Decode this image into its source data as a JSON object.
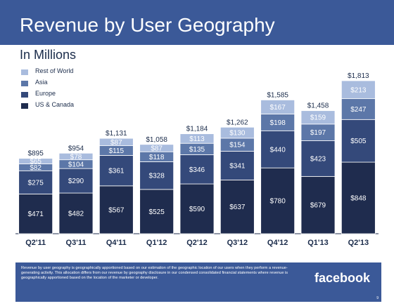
{
  "header": {
    "title": "Revenue by User Geography"
  },
  "subtitle": "In Millions",
  "legend": [
    {
      "label": "Rest of World",
      "color": "#a9bcde"
    },
    {
      "label": "Asia",
      "color": "#5c77a8"
    },
    {
      "label": "Europe",
      "color": "#34497a"
    },
    {
      "label": "US & Canada",
      "color": "#1f2c4e"
    }
  ],
  "chart_data": {
    "type": "bar",
    "stacked": true,
    "categories": [
      "Q2'11",
      "Q3'11",
      "Q4'11",
      "Q1'12",
      "Q2'12",
      "Q3'12",
      "Q4'12",
      "Q1'13",
      "Q2'13"
    ],
    "series": [
      {
        "name": "US & Canada",
        "color": "#1f2c4e",
        "values": [
          471,
          482,
          567,
          525,
          590,
          637,
          780,
          679,
          848
        ],
        "labels": [
          "$471",
          "$482",
          "$567",
          "$525",
          "$590",
          "$637",
          "$780",
          "$679",
          "$848"
        ]
      },
      {
        "name": "Europe",
        "color": "#34497a",
        "values": [
          275,
          290,
          361,
          328,
          346,
          341,
          440,
          423,
          505
        ],
        "labels": [
          "$275",
          "$290",
          "$361",
          "$328",
          "$346",
          "$341",
          "$440",
          "$423",
          "$505"
        ]
      },
      {
        "name": "Asia",
        "color": "#5c77a8",
        "values": [
          82,
          104,
          115,
          118,
          135,
          154,
          198,
          197,
          247
        ],
        "labels": [
          "$82",
          "$104",
          "$115",
          "$118",
          "$135",
          "$154",
          "$198",
          "$197",
          "$247"
        ]
      },
      {
        "name": "Rest of World",
        "color": "#a9bcde",
        "values": [
          65,
          78,
          87,
          87,
          113,
          130,
          167,
          159,
          213
        ],
        "labels": [
          "$65",
          "$78",
          "$87",
          "$87",
          "$113",
          "$130",
          "$167",
          "$159",
          "$213"
        ]
      }
    ],
    "totals": [
      "$895",
      "$954",
      "$1,131",
      "$1,058",
      "$1,184",
      "$1,262",
      "$1,585",
      "$1,458",
      "$1,813"
    ],
    "title": "Revenue by User Geography",
    "subtitle": "In Millions",
    "ylim": [
      0,
      1813
    ],
    "grid": false,
    "legend_position": "top-left"
  },
  "footer": {
    "footnote": "Revenue by user geography is geographically apportioned based on our estimation of the geographic location of our users when they perform a revenue-generating activity. This allocation differs from our revenue by geography disclosure in our condensed consolidated financial statements where revenue is geographically apportioned based on the location of the marketer or developer.",
    "logo": "facebook",
    "page_number": "9"
  }
}
